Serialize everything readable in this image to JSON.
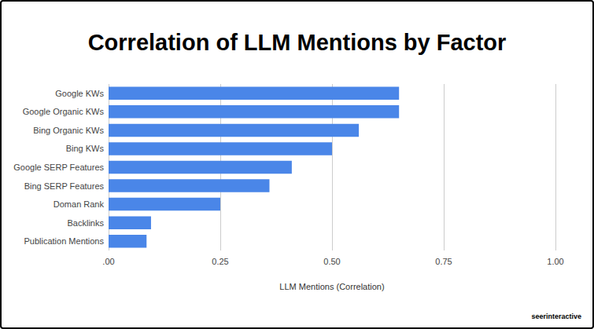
{
  "chart_data": {
    "type": "bar",
    "title": "Correlation of LLM Mentions by Factor",
    "orientation": "horizontal",
    "categories": [
      "Google KWs",
      "Google Organic KWs",
      "Bing Organic KWs",
      "Bing KWs",
      "Google SERP Features",
      "Bing SERP Features",
      "Doman Rank",
      "Backlinks",
      "Publication Mentions"
    ],
    "values": [
      0.65,
      0.65,
      0.56,
      0.5,
      0.41,
      0.36,
      0.25,
      0.095,
      0.085
    ],
    "color": "#4a86e8",
    "x_label": "LLM Mentions (Correlation)",
    "xlim": [
      0,
      1
    ],
    "xticks": [
      {
        "value": 0,
        "label": ".00"
      },
      0.25,
      {
        "value": 0.5,
        "label": "0.50"
      },
      0.75,
      {
        "value": 1,
        "label": "1.00"
      }
    ],
    "grid": true,
    "annotations": [
      "seerinteractive"
    ]
  }
}
